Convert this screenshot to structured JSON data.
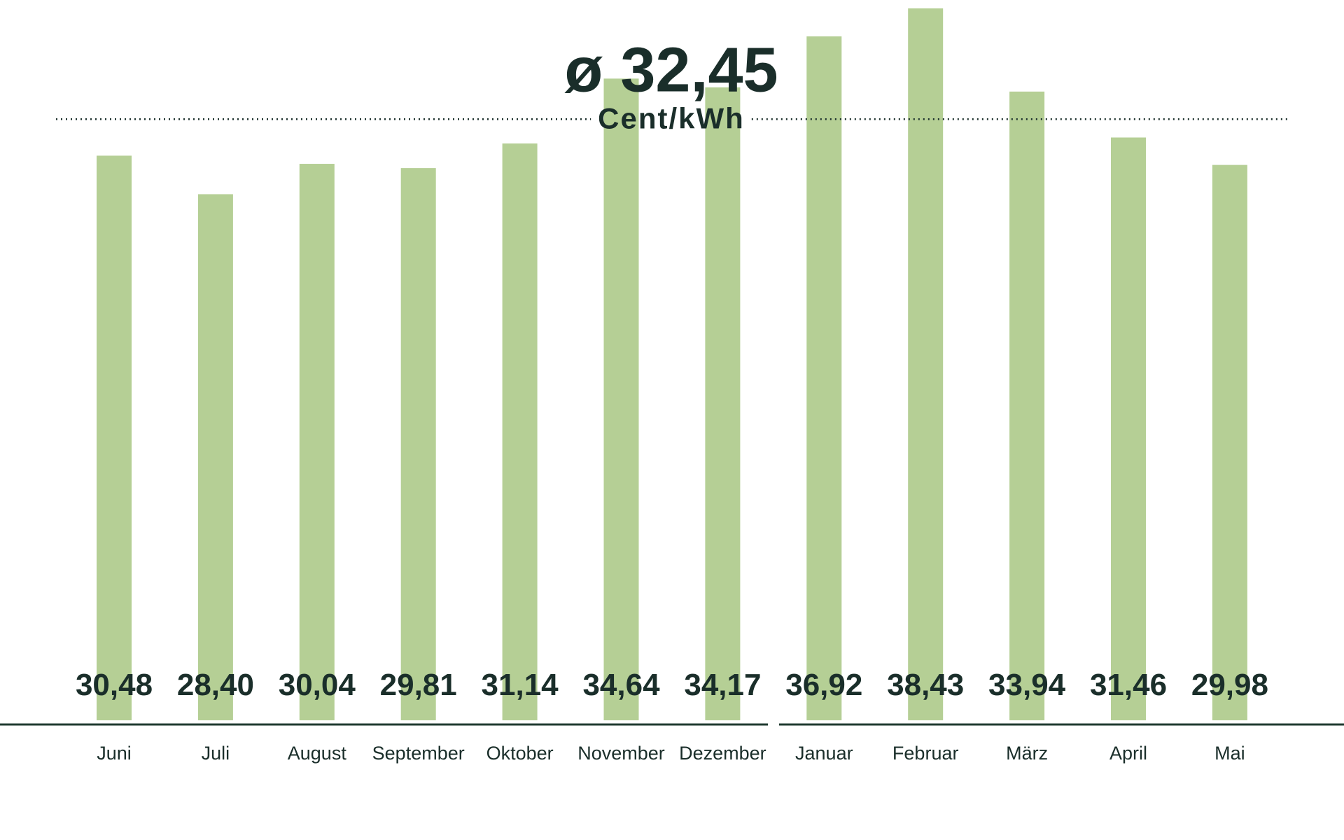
{
  "chart_data": {
    "type": "bar",
    "categories": [
      "Juni",
      "Juli",
      "August",
      "September",
      "Oktober",
      "November",
      "Dezember",
      "Januar",
      "Februar",
      "März",
      "April",
      "Mai"
    ],
    "values": [
      30.48,
      28.4,
      30.04,
      29.81,
      31.14,
      34.64,
      34.17,
      36.92,
      38.43,
      33.94,
      31.46,
      29.98
    ],
    "value_labels": [
      "30,48",
      "28,40",
      "30,04",
      "29,81",
      "31,14",
      "34,64",
      "34,17",
      "36,92",
      "38,43",
      "33,94",
      "31,46",
      "29,98"
    ],
    "color": "#b5cf95",
    "average": {
      "value": 32.45,
      "label": "ø 32,45"
    },
    "unit": "Cent/kWh"
  }
}
